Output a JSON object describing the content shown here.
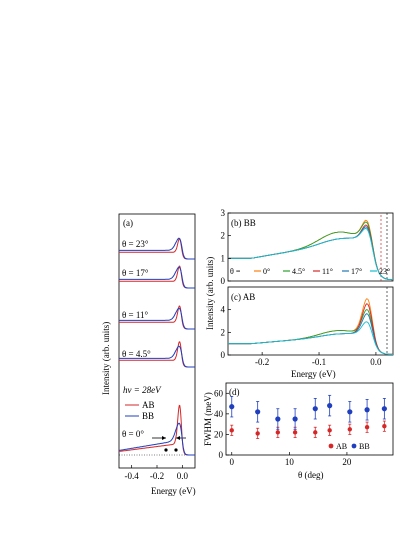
{
  "chart_data": [
    {
      "panel": "(a)",
      "type": "line",
      "xlabel": "Energy (eV)",
      "ylabel": "Intensity (arb. units)",
      "xlim": [
        -0.5,
        0.1
      ],
      "xticks": [
        "-0.4",
        "-0.2",
        "0.0"
      ],
      "photon_energy_label": "hν = 28eV",
      "legend": [
        "AB",
        "BB"
      ],
      "legend_colors": [
        "#d62728",
        "#1f3fbf"
      ],
      "offset_labels": [
        "θ = 23°",
        "θ = 17°",
        "θ = 11°",
        "θ = 4.5°",
        "θ = 0°"
      ],
      "series": [
        {
          "name": "AB",
          "theta": [
            23,
            17,
            11,
            4.5,
            0
          ],
          "peak_height": [
            0.62,
            0.7,
            0.75,
            0.85,
            1.0
          ]
        },
        {
          "name": "BB",
          "theta": [
            23,
            17,
            11,
            4.5,
            0
          ],
          "peak_height": [
            0.55,
            0.55,
            0.55,
            0.55,
            0.45
          ]
        }
      ]
    },
    {
      "panel": "(b) BB",
      "type": "line",
      "xlabel": "",
      "ylabel": "Intensity (arb. units)",
      "xlim": [
        -0.26,
        0.03
      ],
      "ylim": [
        0,
        3
      ],
      "yticks": [
        "0",
        "1",
        "2",
        "3"
      ],
      "legend_prefix": "θ =",
      "series": [
        {
          "name": "0°",
          "color": "#ff7f0e",
          "peak": 2.6
        },
        {
          "name": "4.5°",
          "color": "#2ca02c",
          "peak": 2.5
        },
        {
          "name": "11°",
          "color": "#d62728",
          "peak": 2.4
        },
        {
          "name": "17°",
          "color": "#1f77b4",
          "peak": 2.3
        },
        {
          "name": "23°",
          "color": "#17becf",
          "peak": 2.2
        }
      ]
    },
    {
      "panel": "(c) AB",
      "type": "line",
      "xlabel": "Energy (eV)",
      "ylabel": "",
      "xlim": [
        -0.26,
        0.03
      ],
      "ylim": [
        0,
        6
      ],
      "yticks": [
        "0",
        "2",
        "4"
      ],
      "xticks": [
        "-0.2",
        "-0.1",
        "0.0"
      ],
      "series": [
        {
          "name": "0°",
          "color": "#ff7f0e",
          "peak": 5.5
        },
        {
          "name": "4.5°",
          "color": "#2ca02c",
          "peak": 4.3
        },
        {
          "name": "11°",
          "color": "#d62728",
          "peak": 5.0
        },
        {
          "name": "17°",
          "color": "#1f77b4",
          "peak": 3.9
        },
        {
          "name": "23°",
          "color": "#17becf",
          "peak": 3.0
        }
      ]
    },
    {
      "panel": "(d)",
      "type": "scatter",
      "xlabel": "θ (deg)",
      "ylabel": "FWHM (meV)",
      "xlim": [
        -1,
        28
      ],
      "ylim": [
        0,
        70
      ],
      "xticks": [
        "0",
        "10",
        "20"
      ],
      "yticks": [
        "0",
        "20",
        "40",
        "60"
      ],
      "legend": [
        "AB",
        "BB"
      ],
      "series": [
        {
          "name": "AB",
          "color": "#d62728",
          "x": [
            0,
            4.5,
            8,
            11,
            14.5,
            17,
            20.5,
            23.5,
            26.5
          ],
          "y": [
            24,
            21,
            22,
            22,
            22,
            24,
            25,
            27,
            28
          ],
          "err": 5
        },
        {
          "name": "BB",
          "color": "#1f3fbf",
          "x": [
            0,
            4.5,
            8,
            11,
            14.5,
            17,
            20.5,
            23.5,
            26.5
          ],
          "y": [
            47,
            42,
            35,
            35,
            45,
            48,
            42,
            44,
            45
          ],
          "err": 10
        }
      ]
    }
  ]
}
